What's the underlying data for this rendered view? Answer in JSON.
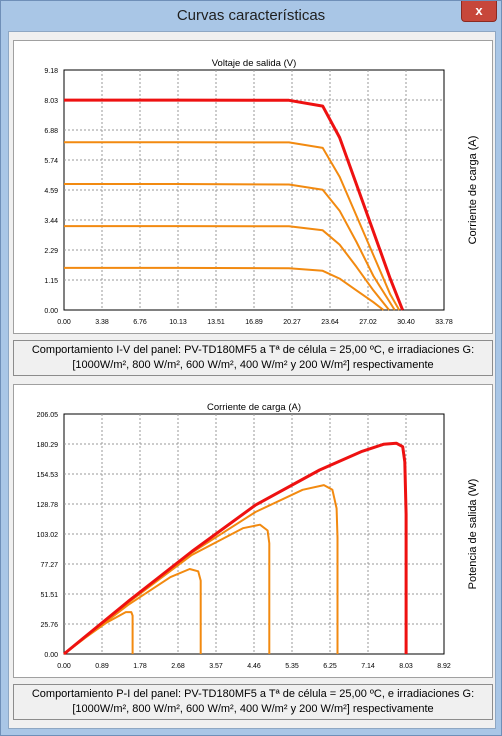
{
  "window": {
    "title": "Curvas características",
    "close_label": "x"
  },
  "colors": {
    "frame": "#a9c6e6",
    "curve_main": "#ee1111",
    "curve_other": "#f28a10"
  },
  "charts": [
    {
      "xlabel": "Voltaje de salida (V)",
      "ylabel": "Corriente de carga (A)",
      "xticks": [
        "0.00",
        "3.38",
        "6.76",
        "10.13",
        "13.51",
        "16.89",
        "20.27",
        "23.64",
        "27.02",
        "30.40",
        "33.78"
      ],
      "yticks": [
        "0.00",
        "1.15",
        "2.29",
        "3.44",
        "4.59",
        "5.74",
        "6.88",
        "8.03",
        "9.18"
      ],
      "caption_line1": "Comportamiento I-V del panel: PV-TD180MF5 a Tª de célula = 25,00 ºC, e irradiaciones G:",
      "caption_line2": "[1000W/m², 800 W/m², 600 W/m², 400 W/m² y 200 W/m²] respectivamente"
    },
    {
      "xlabel": "Corriente de carga (A)",
      "ylabel": "Potencia de salida (W)",
      "xticks": [
        "0.00",
        "0.89",
        "1.78",
        "2.68",
        "3.57",
        "4.46",
        "5.35",
        "6.25",
        "7.14",
        "8.03",
        "8.92"
      ],
      "yticks": [
        "0.00",
        "25.76",
        "51.51",
        "77.27",
        "103.02",
        "128.78",
        "154.53",
        "180.29",
        "206.05"
      ],
      "caption_line1": "Comportamiento P-I del panel: PV-TD180MF5 a Tª de célula = 25,00 ºC, e irradiaciones G:",
      "caption_line2": "[1000W/m², 800 W/m², 600 W/m², 400 W/m² y 200 W/m²] respectivamente"
    }
  ],
  "chart_data": [
    {
      "type": "line",
      "xlabel": "Voltaje de salida (V)",
      "ylabel": "Corriente de carga (A)",
      "xlim": [
        0,
        33.78
      ],
      "ylim": [
        0,
        9.18
      ],
      "grid": true,
      "series": [
        {
          "label_hidden": "1000",
          "x": [
            0,
            10,
            20,
            23,
            24.5,
            26,
            27.5,
            29,
            30.1
          ],
          "y": [
            8.03,
            8.03,
            8.02,
            7.8,
            6.6,
            4.8,
            3.0,
            1.2,
            0
          ]
        },
        {
          "label_hidden": "800",
          "x": [
            0,
            10,
            20,
            23,
            24.5,
            26,
            27.5,
            29,
            29.8
          ],
          "y": [
            6.42,
            6.42,
            6.41,
            6.2,
            5.1,
            3.6,
            2.1,
            0.6,
            0
          ]
        },
        {
          "label_hidden": "600",
          "x": [
            0,
            10,
            20,
            23,
            24.5,
            26,
            27.5,
            29.4
          ],
          "y": [
            4.82,
            4.82,
            4.8,
            4.6,
            3.8,
            2.6,
            1.3,
            0
          ]
        },
        {
          "label_hidden": "400",
          "x": [
            0,
            10,
            20,
            23,
            24.5,
            26,
            27.5,
            28.9
          ],
          "y": [
            3.21,
            3.21,
            3.2,
            3.05,
            2.5,
            1.65,
            0.75,
            0
          ]
        },
        {
          "label_hidden": "200",
          "x": [
            0,
            10,
            20,
            23,
            24.5,
            26,
            27.5,
            28.4
          ],
          "y": [
            1.61,
            1.61,
            1.6,
            1.5,
            1.2,
            0.75,
            0.3,
            0
          ]
        }
      ]
    },
    {
      "type": "line",
      "xlabel": "Corriente de carga (A)",
      "ylabel": "Potencia de salida (W)",
      "xlim": [
        0,
        8.92
      ],
      "ylim": [
        0,
        206.05
      ],
      "grid": true,
      "series": [
        {
          "label_hidden": "1000",
          "x": [
            0,
            0.5,
            1.5,
            3.0,
            4.5,
            6.0,
            7.0,
            7.5,
            7.8,
            7.95,
            8.0,
            8.03,
            8.03
          ],
          "y": [
            0,
            15,
            45,
            88,
            128,
            158,
            174,
            180,
            181,
            178,
            165,
            120,
            0
          ]
        },
        {
          "label_hidden": "800",
          "x": [
            0,
            0.5,
            1.5,
            3.0,
            4.5,
            5.6,
            6.1,
            6.3,
            6.4,
            6.42,
            6.42
          ],
          "y": [
            0,
            15,
            44,
            87,
            122,
            141,
            145,
            141,
            125,
            100,
            0
          ]
        },
        {
          "label_hidden": "600",
          "x": [
            0,
            0.5,
            1.5,
            3.0,
            4.2,
            4.6,
            4.78,
            4.82,
            4.82
          ],
          "y": [
            0,
            15,
            44,
            85,
            108,
            111,
            106,
            95,
            0
          ]
        },
        {
          "label_hidden": "400",
          "x": [
            0,
            0.5,
            1.5,
            2.5,
            2.95,
            3.15,
            3.21,
            3.21
          ],
          "y": [
            0,
            14,
            42,
            66,
            73,
            71,
            63,
            0
          ]
        },
        {
          "label_hidden": "200",
          "x": [
            0,
            0.5,
            1.0,
            1.45,
            1.58,
            1.61,
            1.61
          ],
          "y": [
            0,
            14,
            27,
            36,
            36,
            33,
            0
          ]
        }
      ]
    }
  ]
}
